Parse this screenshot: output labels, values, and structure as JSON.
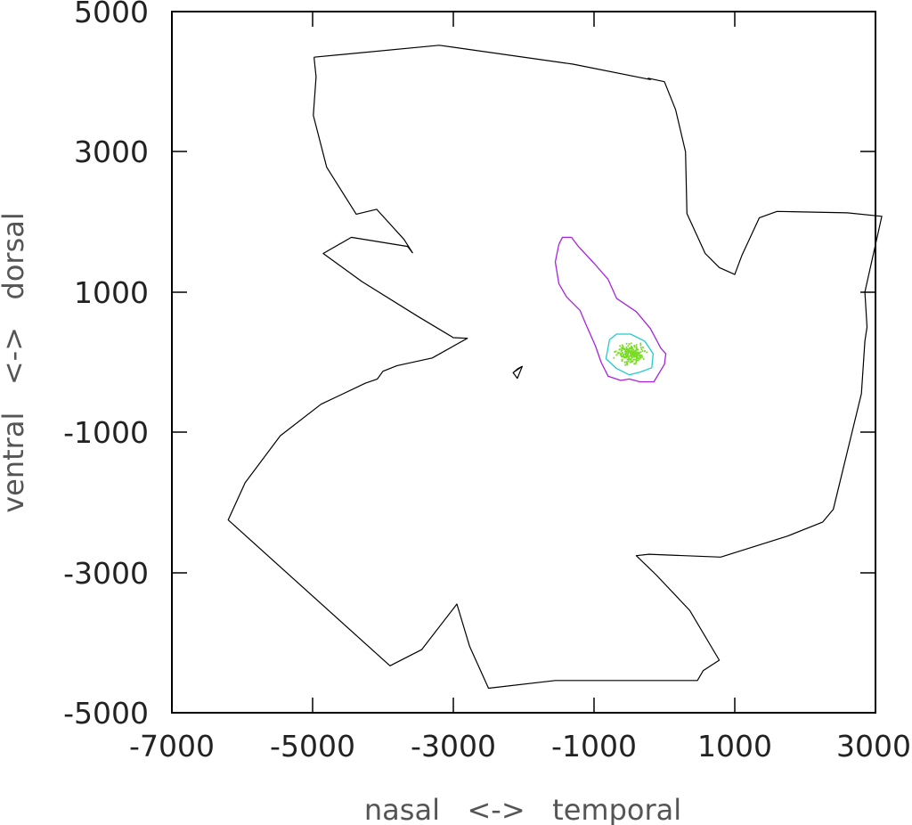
{
  "chart_data": {
    "type": "scatter",
    "title": "",
    "xlabel": "nasal   <->   temporal",
    "ylabel": "ventral   <->   dorsal",
    "xlim": [
      -7000,
      3000
    ],
    "ylim": [
      -5000,
      5000
    ],
    "xticks": [
      "-7000",
      "-5000",
      "-3000",
      "-1000",
      "1000",
      "3000"
    ],
    "yticks": [
      "5000",
      "3000",
      "1000",
      "-1000",
      "-3000",
      "-5000"
    ],
    "xtick_values": [
      -7000,
      -5000,
      -3000,
      -1000,
      1000,
      3000
    ],
    "ytick_values": [
      5000,
      3000,
      1000,
      -1000,
      -3000,
      -5000
    ],
    "grid": false,
    "colors": {
      "outline": "#000000",
      "outer_contour": "#aa22dd",
      "inner_contour": "#22cccc",
      "points": "#77dd22"
    },
    "series": [
      {
        "role": "retina-outline",
        "points": [
          [
            -4980,
            4350
          ],
          [
            -3200,
            4520
          ],
          [
            -1300,
            4250
          ],
          [
            -200,
            4030
          ],
          [
            -230,
            4050
          ],
          [
            0,
            4000
          ],
          [
            160,
            3600
          ],
          [
            300,
            3000
          ],
          [
            320,
            2120
          ],
          [
            580,
            1550
          ],
          [
            780,
            1350
          ],
          [
            1000,
            1250
          ],
          [
            1100,
            1520
          ],
          [
            1350,
            2060
          ],
          [
            1600,
            2150
          ],
          [
            2600,
            2130
          ],
          [
            3090,
            2080
          ],
          [
            2850,
            1000
          ],
          [
            2880,
            500
          ],
          [
            2850,
            300
          ],
          [
            2800,
            -450
          ],
          [
            2400,
            -2100
          ],
          [
            2250,
            -2280
          ],
          [
            1750,
            -2480
          ],
          [
            800,
            -2780
          ],
          [
            -220,
            -2740
          ],
          [
            -400,
            -2760
          ],
          [
            -120,
            -3030
          ],
          [
            360,
            -3540
          ],
          [
            780,
            -4250
          ],
          [
            550,
            -4400
          ],
          [
            470,
            -4540
          ],
          [
            -1550,
            -4540
          ],
          [
            -2500,
            -4650
          ],
          [
            -2770,
            -4050
          ],
          [
            -2950,
            -3450
          ],
          [
            -3450,
            -4100
          ],
          [
            -3900,
            -4330
          ],
          [
            -6200,
            -2250
          ],
          [
            -5960,
            -1720
          ],
          [
            -5460,
            -1050
          ],
          [
            -4880,
            -600
          ],
          [
            -4250,
            -300
          ],
          [
            -4080,
            -240
          ],
          [
            -4000,
            -130
          ],
          [
            -3800,
            -50
          ],
          [
            -3300,
            60
          ],
          [
            -2800,
            340
          ],
          [
            -3000,
            350
          ],
          [
            -3500,
            650
          ],
          [
            -4300,
            1150
          ],
          [
            -4850,
            1550
          ],
          [
            -4450,
            1780
          ],
          [
            -3650,
            1650
          ],
          [
            -3580,
            1560
          ],
          [
            -3700,
            1750
          ],
          [
            -4090,
            2180
          ],
          [
            -4380,
            2110
          ],
          [
            -4800,
            2780
          ],
          [
            -4990,
            3520
          ],
          [
            -4950,
            4070
          ],
          [
            -4980,
            4350
          ]
        ]
      },
      {
        "role": "optic-disc",
        "points": [
          [
            -2150,
            -150
          ],
          [
            -2020,
            -60
          ],
          [
            -2080,
            -90
          ],
          [
            -2150,
            -150
          ],
          [
            -2090,
            -230
          ],
          [
            -2020,
            -60
          ]
        ]
      },
      {
        "role": "outer-density-contour",
        "points": [
          [
            -1500,
            1680
          ],
          [
            -1450,
            1780
          ],
          [
            -1320,
            1780
          ],
          [
            -1230,
            1660
          ],
          [
            -1000,
            1410
          ],
          [
            -800,
            1180
          ],
          [
            -680,
            910
          ],
          [
            -400,
            720
          ],
          [
            -200,
            480
          ],
          [
            -50,
            200
          ],
          [
            20,
            120
          ],
          [
            0,
            -30
          ],
          [
            -150,
            -280
          ],
          [
            -350,
            -280
          ],
          [
            -500,
            -240
          ],
          [
            -620,
            -260
          ],
          [
            -800,
            -200
          ],
          [
            -900,
            0
          ],
          [
            -980,
            230
          ],
          [
            -1120,
            550
          ],
          [
            -1200,
            740
          ],
          [
            -1390,
            930
          ],
          [
            -1500,
            1120
          ],
          [
            -1550,
            1430
          ],
          [
            -1500,
            1680
          ]
        ]
      },
      {
        "role": "inner-density-contour",
        "points": [
          [
            -780,
            320
          ],
          [
            -680,
            400
          ],
          [
            -480,
            400
          ],
          [
            -280,
            300
          ],
          [
            -160,
            120
          ],
          [
            -180,
            -80
          ],
          [
            -340,
            -140
          ],
          [
            -500,
            -180
          ],
          [
            -680,
            -90
          ],
          [
            -830,
            50
          ],
          [
            -780,
            320
          ]
        ]
      },
      {
        "role": "cell-positions",
        "count": 220,
        "center": [
          -480,
          120
        ],
        "spread": [
          220,
          160
        ]
      }
    ]
  }
}
